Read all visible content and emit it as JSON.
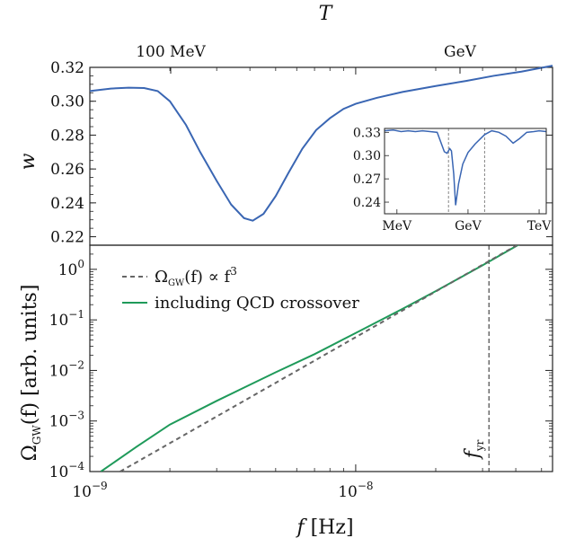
{
  "chart_data": [
    {
      "id": "top",
      "type": "line",
      "top_axis_label": "T",
      "top_ticks": [
        "100 MeV",
        "GeV"
      ],
      "ylabel": "w",
      "ylim": [
        0.215,
        0.32
      ],
      "yticks": [
        0.22,
        0.24,
        0.26,
        0.28,
        0.3,
        0.32
      ],
      "ytick_labels": [
        "0.22",
        "0.24",
        "0.26",
        "0.28",
        "0.30",
        "0.32"
      ],
      "log_x": true,
      "xlim_hz": [
        1e-09,
        5.5e-08
      ],
      "series": [
        {
          "color": "#3a66b3",
          "x": [
            1e-09,
            1.2e-09,
            1.4e-09,
            1.6e-09,
            1.8e-09,
            2e-09,
            2.3e-09,
            2.6e-09,
            3e-09,
            3.4e-09,
            3.8e-09,
            4.1e-09,
            4.5e-09,
            5e-09,
            5.6e-09,
            6.3e-09,
            7.1e-09,
            8e-09,
            9e-09,
            1e-08,
            1.2e-08,
            1.5e-08,
            2e-08,
            2.6e-08,
            3.3e-08,
            4.2e-08,
            5.5e-08
          ],
          "y": [
            0.306,
            0.3075,
            0.308,
            0.3078,
            0.306,
            0.3,
            0.286,
            0.27,
            0.253,
            0.239,
            0.231,
            0.2295,
            0.2335,
            0.244,
            0.258,
            0.272,
            0.283,
            0.29,
            0.2955,
            0.2985,
            0.302,
            0.3055,
            0.309,
            0.312,
            0.315,
            0.3175,
            0.321
          ]
        }
      ],
      "inset": {
        "type": "line",
        "xticks": [
          "MeV",
          "GeV",
          "TeV"
        ],
        "yticks": [
          0.24,
          0.27,
          0.3,
          0.33
        ],
        "ytick_labels": [
          "0.24",
          "0.27",
          "0.30",
          "0.33"
        ],
        "ylim": [
          0.225,
          0.335
        ],
        "log_x": true,
        "xlim_gev": [
          0.0003,
          2000
        ],
        "reference_lines_gev": [
          0.15,
          5.0
        ],
        "series": [
          {
            "color": "#3a66b3",
            "x": [
              0.0003,
              0.0007,
              0.0015,
              0.003,
              0.006,
              0.012,
              0.025,
              0.05,
              0.1,
              0.13,
              0.17,
              0.2,
              0.25,
              0.3,
              0.4,
              0.6,
              1.0,
              2.0,
              5.0,
              10,
              20,
              40,
              80,
              150,
              300,
              600,
              1000,
              2000
            ],
            "y": [
              0.332,
              0.333,
              0.331,
              0.332,
              0.331,
              0.332,
              0.331,
              0.33,
              0.305,
              0.303,
              0.309,
              0.306,
              0.276,
              0.236,
              0.264,
              0.289,
              0.304,
              0.315,
              0.327,
              0.332,
              0.33,
              0.325,
              0.316,
              0.322,
              0.33,
              0.331,
              0.332,
              0.331
            ]
          }
        ]
      }
    },
    {
      "id": "bottom",
      "type": "line",
      "log_x": true,
      "log_y": true,
      "xlabel_italic": "f",
      "xlabel_unit": "[Hz]",
      "ylabel_main": "Ω",
      "ylabel_sub": "GW",
      "ylabel_rest": "(f) [arb. units]",
      "xlim": [
        1e-09,
        5.5e-08
      ],
      "ylim": [
        0.0001,
        3
      ],
      "xticks": [
        1e-09,
        1e-08
      ],
      "xtick_base": "10",
      "xtick_exponents": [
        "−9",
        "−8"
      ],
      "yticks": [
        0.0001,
        0.001,
        0.01,
        0.1,
        1
      ],
      "ytick_exponents": [
        "−4",
        "−3",
        "−2",
        "−1",
        "0"
      ],
      "fyr": {
        "x": 3.17e-08,
        "label_main": "f",
        "label_sub": "yr"
      },
      "series": [
        {
          "name": "Ω_GW(f) ∝ f³",
          "legend_main": "Ω",
          "legend_sub": "GW",
          "legend_mid": "(f) ∝ f",
          "legend_sup": "3",
          "style": "dashed",
          "color": "#666666",
          "x": [
            1.3e-09,
            2e-09,
            3e-09,
            5e-09,
            8e-09,
            1.2e-08,
            2e-08,
            3e-08,
            4e-08,
            5.5e-08
          ],
          "y": [
            0.0001,
            0.000364,
            0.00123,
            0.00569,
            0.0233,
            0.0787,
            0.364,
            1.23,
            2.91,
            7.57
          ]
        },
        {
          "name": "including QCD crossover",
          "style": "solid",
          "color": "#1f9a5a",
          "x": [
            1.1e-09,
            1.5e-09,
            2e-09,
            3e-09,
            4e-09,
            5e-09,
            7e-09,
            1e-08,
            1.5e-08,
            2e-08,
            3e-08,
            4e-08,
            5.5e-08
          ],
          "y": [
            0.0001,
            0.00031,
            0.00085,
            0.0025,
            0.0052,
            0.0092,
            0.021,
            0.055,
            0.165,
            0.37,
            1.2,
            2.85,
            7.4
          ]
        }
      ]
    }
  ]
}
